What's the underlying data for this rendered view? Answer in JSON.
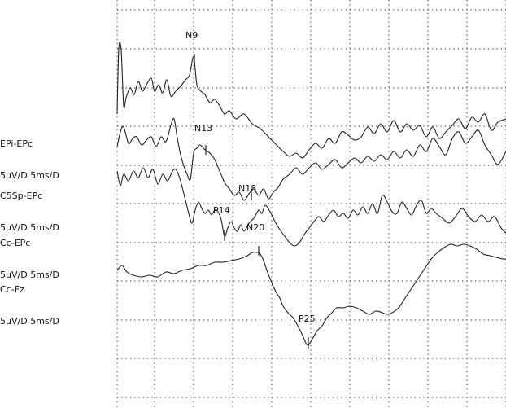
{
  "chart_data": {
    "type": "line",
    "grid": "dotted",
    "channels": [
      {
        "name": "EPi-EPc",
        "scale": "5µV/D 5ms/D"
      },
      {
        "name": "C5Sp-EPc",
        "scale": "5µV/D 5ms/D"
      },
      {
        "name": "Cc-EPc",
        "scale": "5µV/D 5ms/D"
      },
      {
        "name": "Cc-Fz",
        "scale": "5µV/D 5ms/D"
      }
    ],
    "peaks": [
      "N9",
      "N13",
      "N18",
      "P14",
      "N20",
      "P25"
    ],
    "line_color": "#222222",
    "grid_color": "#555555"
  }
}
